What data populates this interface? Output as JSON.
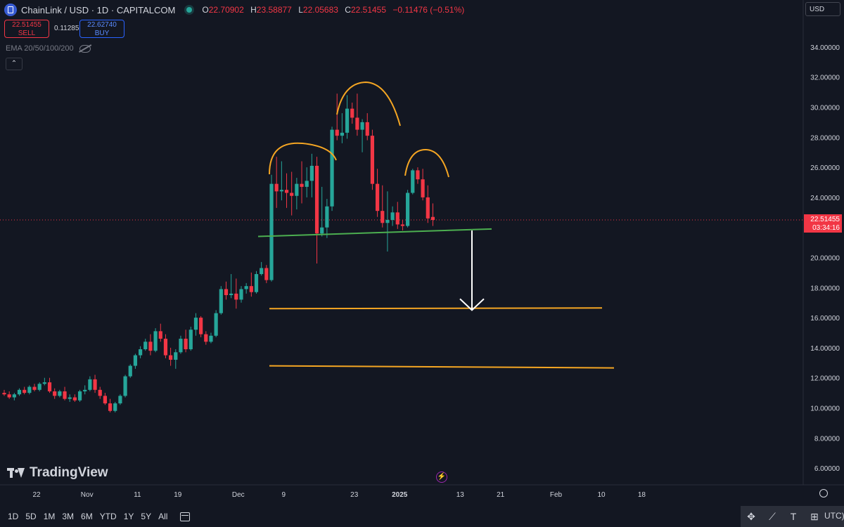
{
  "header": {
    "symbol_title": "ChainLink / USD · 1D · CAPITALCOM",
    "ohlc": [
      {
        "k": "O",
        "v": "22.70902"
      },
      {
        "k": "H",
        "v": "23.58877"
      },
      {
        "k": "L",
        "v": "22.05683"
      },
      {
        "k": "C",
        "v": "22.51455"
      }
    ],
    "change": "−0.11476 (−0.51%)",
    "currency": "USD"
  },
  "trade": {
    "sell_price": "22.51455",
    "sell_label": "SELL",
    "spread": "0.11285",
    "buy_price": "22.62740",
    "buy_label": "BUY"
  },
  "indicator": {
    "label": "EMA 20/50/100/200",
    "collapse_glyph": "⌃"
  },
  "price_label": {
    "value": "22.51455",
    "countdown": "03:34:16"
  },
  "branding": {
    "name": "TradingView"
  },
  "bottom": {
    "ranges": [
      "1D",
      "5D",
      "1M",
      "3M",
      "6M",
      "YTD",
      "1Y",
      "5Y",
      "All"
    ],
    "tz_label": "UTC)"
  },
  "colors": {
    "background": "#131722",
    "up": "#26a69a",
    "down": "#f23645",
    "neckline": "#4caf50",
    "target_lines": "#f5a623",
    "arrow": "#ffffff"
  },
  "chart_data": {
    "type": "candlestick",
    "pattern": "head and shoulders",
    "y_ticks": [
      "34.00000",
      "32.00000",
      "30.00000",
      "28.00000",
      "26.00000",
      "24.00000",
      "20.00000",
      "18.00000",
      "16.00000",
      "14.00000",
      "12.00000",
      "10.00000",
      "8.00000",
      "6.00000"
    ],
    "ylim": [
      5.5,
      35
    ],
    "x_ticks": [
      {
        "label": "22",
        "i": 0
      },
      {
        "label": "Nov",
        "i": 10
      },
      {
        "label": "11",
        "i": 20
      },
      {
        "label": "19",
        "i": 28
      },
      {
        "label": "Dec",
        "i": 40
      },
      {
        "label": "9",
        "i": 49
      },
      {
        "label": "23",
        "i": 63
      },
      {
        "label": "2025",
        "i": 72,
        "bold": true
      },
      {
        "label": "13",
        "i": 84
      },
      {
        "label": "21",
        "i": 92
      },
      {
        "label": "Feb",
        "i": 103
      },
      {
        "label": "10",
        "i": 112
      },
      {
        "label": "18",
        "i": 120
      }
    ],
    "candles": [
      [
        11.0,
        11.2,
        10.8,
        10.9
      ],
      [
        10.9,
        11.1,
        10.6,
        10.7
      ],
      [
        10.7,
        11.0,
        10.5,
        10.9
      ],
      [
        10.9,
        11.3,
        10.8,
        11.2
      ],
      [
        11.2,
        11.4,
        10.9,
        11.0
      ],
      [
        11.0,
        11.5,
        10.9,
        11.4
      ],
      [
        11.4,
        11.6,
        11.1,
        11.2
      ],
      [
        11.2,
        11.7,
        11.1,
        11.6
      ],
      [
        11.6,
        12.0,
        11.5,
        11.7
      ],
      [
        11.7,
        12.0,
        11.0,
        11.1
      ],
      [
        11.1,
        11.3,
        10.6,
        10.8
      ],
      [
        10.8,
        11.2,
        10.7,
        11.1
      ],
      [
        11.1,
        11.4,
        10.5,
        10.6
      ],
      [
        10.6,
        10.9,
        10.4,
        10.7
      ],
      [
        10.7,
        10.9,
        10.4,
        10.5
      ],
      [
        10.5,
        11.2,
        10.4,
        11.1
      ],
      [
        11.1,
        11.5,
        10.9,
        11.2
      ],
      [
        11.2,
        12.1,
        11.1,
        11.9
      ],
      [
        11.9,
        12.2,
        11.0,
        11.2
      ],
      [
        11.2,
        11.4,
        10.6,
        10.8
      ],
      [
        10.8,
        11.0,
        10.2,
        10.3
      ],
      [
        10.3,
        10.6,
        9.7,
        9.8
      ],
      [
        9.8,
        10.4,
        9.7,
        10.3
      ],
      [
        10.3,
        10.9,
        10.2,
        10.8
      ],
      [
        10.8,
        12.2,
        10.7,
        12.1
      ],
      [
        12.1,
        12.9,
        12.0,
        12.8
      ],
      [
        12.8,
        13.6,
        12.6,
        13.5
      ],
      [
        13.5,
        14.1,
        13.3,
        13.9
      ],
      [
        13.9,
        14.6,
        13.8,
        14.4
      ],
      [
        14.4,
        14.9,
        13.5,
        13.8
      ],
      [
        13.8,
        15.3,
        13.7,
        15.1
      ],
      [
        15.1,
        15.6,
        14.4,
        14.6
      ],
      [
        14.6,
        14.9,
        13.3,
        13.5
      ],
      [
        13.5,
        14.0,
        12.8,
        13.2
      ],
      [
        13.2,
        13.9,
        12.6,
        13.7
      ],
      [
        13.7,
        14.8,
        13.6,
        14.6
      ],
      [
        14.6,
        15.2,
        13.7,
        13.9
      ],
      [
        13.9,
        15.4,
        13.8,
        15.2
      ],
      [
        15.2,
        16.3,
        14.8,
        16.0
      ],
      [
        16.0,
        16.1,
        14.7,
        14.9
      ],
      [
        14.9,
        15.1,
        14.2,
        14.4
      ],
      [
        14.4,
        15.0,
        14.3,
        14.8
      ],
      [
        14.8,
        16.5,
        14.7,
        16.3
      ],
      [
        16.3,
        18.1,
        16.2,
        17.9
      ],
      [
        17.9,
        18.4,
        17.2,
        17.5
      ],
      [
        17.5,
        18.9,
        17.3,
        17.6
      ],
      [
        17.6,
        18.6,
        16.6,
        17.2
      ],
      [
        17.2,
        18.1,
        17.0,
        17.9
      ],
      [
        17.9,
        18.3,
        17.6,
        18.1
      ],
      [
        18.1,
        19.0,
        17.4,
        17.7
      ],
      [
        17.7,
        19.1,
        17.6,
        18.9
      ],
      [
        18.9,
        19.7,
        18.8,
        19.3
      ],
      [
        19.3,
        19.5,
        18.3,
        18.5
      ],
      [
        18.5,
        25.5,
        18.4,
        24.9
      ],
      [
        24.9,
        26.7,
        23.3,
        24.4
      ],
      [
        24.4,
        26.4,
        23.8,
        24.5
      ],
      [
        24.5,
        25.6,
        23.3,
        24.3
      ],
      [
        24.3,
        25.7,
        22.8,
        24.1
      ],
      [
        24.1,
        25.3,
        23.2,
        24.9
      ],
      [
        24.9,
        26.4,
        23.6,
        24.7
      ],
      [
        24.7,
        26.0,
        24.0,
        25.1
      ],
      [
        25.1,
        26.9,
        24.0,
        26.1
      ],
      [
        26.1,
        26.7,
        19.6,
        21.6
      ],
      [
        21.6,
        24.7,
        21.4,
        22.0
      ],
      [
        22.0,
        23.9,
        21.3,
        23.4
      ],
      [
        23.4,
        28.7,
        23.1,
        28.5
      ],
      [
        28.5,
        30.9,
        27.8,
        28.1
      ],
      [
        28.1,
        29.6,
        27.6,
        28.3
      ],
      [
        28.3,
        30.8,
        27.9,
        29.9
      ],
      [
        29.9,
        30.3,
        28.9,
        29.3
      ],
      [
        29.3,
        30.9,
        28.1,
        28.5
      ],
      [
        28.5,
        29.2,
        27.0,
        29.0
      ],
      [
        29.0,
        29.6,
        27.8,
        28.1
      ],
      [
        28.1,
        28.5,
        24.5,
        24.9
      ],
      [
        24.9,
        25.9,
        22.7,
        23.1
      ],
      [
        23.1,
        24.8,
        22.0,
        22.3
      ],
      [
        22.3,
        24.4,
        20.4,
        22.5
      ],
      [
        22.5,
        23.4,
        22.1,
        23.0
      ],
      [
        23.0,
        23.7,
        21.9,
        22.2
      ],
      [
        22.2,
        22.5,
        21.8,
        22.1
      ],
      [
        22.1,
        24.5,
        22.0,
        24.3
      ],
      [
        24.3,
        25.9,
        24.2,
        25.8
      ],
      [
        25.8,
        26.0,
        24.9,
        25.2
      ],
      [
        25.2,
        25.9,
        23.8,
        24.0
      ],
      [
        24.0,
        24.8,
        22.3,
        22.6
      ],
      [
        22.7,
        23.6,
        22.1,
        22.5
      ]
    ],
    "annotations": {
      "neckline": {
        "from": {
          "i": 0,
          "y": 21.4
        },
        "to": {
          "i": 80,
          "y": 21.9
        }
      },
      "targets": [
        {
          "label": "",
          "y": 16.6
        },
        {
          "label": "",
          "y": 12.8
        }
      ],
      "arrow": {
        "from_y": 21.8,
        "to_y": 16.5
      },
      "arcs": [
        "left shoulder",
        "head",
        "right shoulder"
      ]
    }
  }
}
